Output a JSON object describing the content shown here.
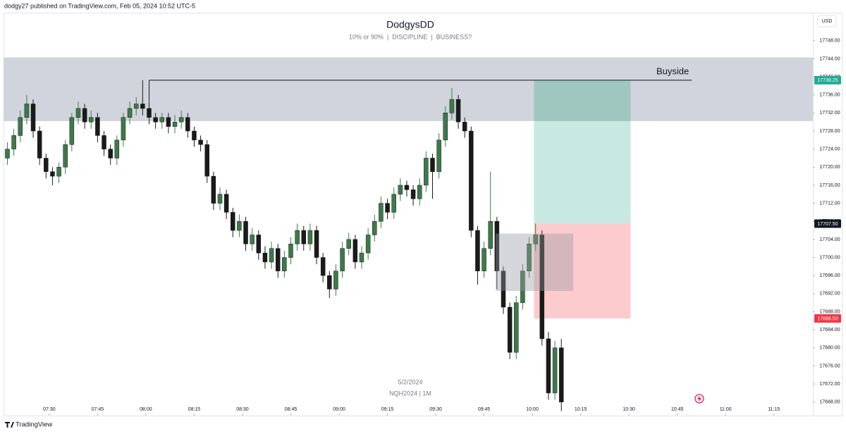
{
  "header": {
    "published": "dodgy27 published on TradingView.com, Feb 05, 2024 10:52 UTC-5"
  },
  "footer": {
    "brand": "TradingView"
  },
  "chart_data": {
    "type": "candlestick",
    "title": "DodgysDD",
    "subtitle": "10% or 90%  |  DISCIPLINE  |  BUSINESS?",
    "watermark": [
      "5/2/2024",
      "NQH2024 | 1M"
    ],
    "currency": "USD",
    "up_color": "#3d7a4a",
    "down_color": "#1a1a1a",
    "grid": false,
    "xlim": [
      435.8,
      687.1
    ],
    "ylim": [
      17665,
      17754.2
    ],
    "xticks": [
      {
        "value": 450,
        "label": "07:30"
      },
      {
        "value": 465,
        "label": "07:45"
      },
      {
        "value": 480,
        "label": "08:00"
      },
      {
        "value": 495,
        "label": "08:15"
      },
      {
        "value": 510,
        "label": "08:30"
      },
      {
        "value": 525,
        "label": "08:45"
      },
      {
        "value": 540,
        "label": "09:00"
      },
      {
        "value": 555,
        "label": "09:15"
      },
      {
        "value": 570,
        "label": "09:30"
      },
      {
        "value": 585,
        "label": "09:45"
      },
      {
        "value": 600,
        "label": "10:00"
      },
      {
        "value": 615,
        "label": "10:15"
      },
      {
        "value": 630,
        "label": "10:30"
      },
      {
        "value": 645,
        "label": "10:45"
      },
      {
        "value": 660,
        "label": "11:00"
      },
      {
        "value": 675,
        "label": "11:15"
      }
    ],
    "yticks": [
      {
        "value": 17748,
        "label": "17748.00"
      },
      {
        "value": 17744,
        "label": "17744.00"
      },
      {
        "value": 17740,
        "label": "17740.00"
      },
      {
        "value": 17736,
        "label": "17736.00"
      },
      {
        "value": 17732,
        "label": "17732.00"
      },
      {
        "value": 17728,
        "label": "17728.00"
      },
      {
        "value": 17724,
        "label": "17724.00"
      },
      {
        "value": 17720,
        "label": "17720.00"
      },
      {
        "value": 17716,
        "label": "17716.00"
      },
      {
        "value": 17712,
        "label": "17712.00"
      },
      {
        "value": 17708,
        "label": "17708.00"
      },
      {
        "value": 17704,
        "label": "17704.00"
      },
      {
        "value": 17700,
        "label": "17700.00"
      },
      {
        "value": 17696,
        "label": "17696.00"
      },
      {
        "value": 17692,
        "label": "17692.00"
      },
      {
        "value": 17688,
        "label": "17688.00"
      },
      {
        "value": 17684,
        "label": "17684.00"
      },
      {
        "value": 17680,
        "label": "17680.00"
      },
      {
        "value": 17676,
        "label": "17676.00"
      },
      {
        "value": 17672,
        "label": "17672.00"
      },
      {
        "value": 17668,
        "label": "17668.00"
      }
    ],
    "price_labels": [
      {
        "value": 17739.25,
        "label": "17739.25",
        "color": "#22ab94"
      },
      {
        "value": 17707.5,
        "label": "17707.50",
        "color": "#131722"
      },
      {
        "value": 17686.5,
        "label": "17686.50",
        "color": "#f23645"
      }
    ],
    "zone": {
      "y": [
        17730.2,
        17744.3
      ],
      "color": "#d1d4dc"
    },
    "buyside": {
      "label": "Buyside",
      "value": 17739.25,
      "x": [
        481,
        649.5
      ]
    },
    "position": {
      "x": [
        600.5,
        630.5
      ],
      "target": 17739.25,
      "entry": 17707.5,
      "stop": 17686.5,
      "target_color": "#c8e9e2",
      "stop_color": "#fccbcd"
    },
    "fvg": {
      "x": [
        588.6,
        612.7
      ],
      "y": [
        17692.6,
        17705.3
      ],
      "color": "#9598a1"
    },
    "x": [
      437,
      439,
      441,
      443,
      445,
      447,
      449,
      451,
      453,
      455,
      457,
      459,
      461,
      463,
      465,
      467,
      469,
      471,
      473,
      475,
      477,
      479,
      481,
      483,
      485,
      487,
      489,
      491,
      493,
      495,
      497,
      499,
      501,
      503,
      505,
      507,
      509,
      511,
      513,
      515,
      517,
      519,
      521,
      523,
      525,
      527,
      529,
      531,
      533,
      535,
      537,
      539,
      541,
      543,
      545,
      547,
      549,
      551,
      553,
      555,
      557,
      559,
      561,
      563,
      565,
      567,
      569,
      571,
      573,
      575,
      577,
      579,
      581,
      583,
      585,
      587,
      589,
      591,
      593,
      595,
      597,
      599,
      601,
      603,
      605,
      607,
      609
    ],
    "open": [
      17722,
      17724,
      17727,
      17731,
      17734,
      17728,
      17722,
      17719,
      17718,
      17720,
      17725,
      17731,
      17733,
      17730,
      17731,
      17727,
      17724,
      17722,
      17726,
      17731,
      17733,
      17734,
      17733,
      17731,
      17730,
      17731,
      17729,
      17730,
      17731,
      17728,
      17726,
      17725,
      17718,
      17712,
      17714,
      17710,
      17706,
      17708,
      17703,
      17705,
      17701,
      17699,
      17702,
      17697,
      17700,
      17703,
      17706,
      17703,
      17706,
      17700,
      17696,
      17693,
      17697,
      17702,
      17704,
      17699,
      17701,
      17705,
      17708,
      17712,
      17710,
      17714,
      17716,
      17715,
      17713,
      17716,
      17722,
      17719,
      17726,
      17732,
      17735,
      17730,
      17728,
      17706,
      17697,
      17702,
      17708,
      17697,
      17689,
      17679,
      17690,
      17697,
      17703,
      17705,
      17682,
      17670,
      17680
    ],
    "high": [
      17725.5,
      17728.5,
      17732.5,
      17736,
      17735,
      17729,
      17723,
      17720,
      17721,
      17726,
      17732,
      17734.5,
      17734,
      17732.5,
      17732,
      17728,
      17725,
      17727,
      17732,
      17734.5,
      17735.5,
      17739.25,
      17734.5,
      17732,
      17732,
      17732,
      17731.5,
      17732.5,
      17732,
      17729,
      17727,
      17726,
      17719,
      17715.5,
      17715,
      17711,
      17709.5,
      17709,
      17706.5,
      17706,
      17702.5,
      17703.5,
      17703,
      17701.5,
      17704.5,
      17707.5,
      17707,
      17707.5,
      17707,
      17701,
      17697,
      17698.5,
      17703.5,
      17705.5,
      17705,
      17702.5,
      17706.5,
      17709.5,
      17713.5,
      17713,
      17715.5,
      17717.5,
      17717,
      17716,
      17717.5,
      17723.5,
      17723,
      17727.5,
      17733.5,
      17737.5,
      17736,
      17731,
      17729,
      17707,
      17703.5,
      17719,
      17709,
      17698,
      17690,
      17691.5,
      17698.5,
      17704.5,
      17707.5,
      17706,
      17683.5,
      17681.5,
      17682
    ],
    "low": [
      17720.5,
      17722.5,
      17725.5,
      17729.5,
      17726.5,
      17720.5,
      17717.5,
      17716,
      17716.5,
      17718.5,
      17723.5,
      17729.5,
      17728.5,
      17728.5,
      17725.5,
      17722.5,
      17720.5,
      17720.5,
      17724.5,
      17729.5,
      17731.5,
      17731.5,
      17729.5,
      17728.5,
      17728.5,
      17727.5,
      17727.5,
      17728.5,
      17726.5,
      17724.5,
      17723.5,
      17716.5,
      17710.5,
      17710.5,
      17708.5,
      17704.5,
      17704.5,
      17701.5,
      17701.5,
      17699.5,
      17697.5,
      17697.5,
      17695.5,
      17695.5,
      17698.5,
      17701.5,
      17701.5,
      17701.5,
      17698.5,
      17694.5,
      17691,
      17691.5,
      17695.5,
      17700.5,
      17697.5,
      17697.5,
      17699.5,
      17703.5,
      17706.5,
      17708.5,
      17708.5,
      17712.5,
      17713.5,
      17711.5,
      17711.5,
      17714.5,
      17713,
      17717.5,
      17724.5,
      17730.5,
      17728.5,
      17726.5,
      17704.5,
      17694,
      17695.5,
      17700.5,
      17693,
      17687.5,
      17677.5,
      17677.5,
      17688.5,
      17695.5,
      17701.5,
      17680.5,
      17668.5,
      17668.5,
      17666
    ],
    "close": [
      17724,
      17727,
      17731,
      17734,
      17728,
      17722,
      17719,
      17718,
      17720,
      17725,
      17731,
      17733,
      17730,
      17731,
      17727,
      17724,
      17722,
      17726,
      17731,
      17733,
      17734,
      17733,
      17731,
      17730,
      17731,
      17729,
      17730,
      17731,
      17728,
      17726,
      17725,
      17718,
      17712,
      17714,
      17710,
      17706,
      17708,
      17703,
      17705,
      17701,
      17699,
      17702,
      17697,
      17700,
      17703,
      17706,
      17703,
      17706,
      17700,
      17696,
      17693,
      17697,
      17702,
      17704,
      17699,
      17701,
      17705,
      17708,
      17712,
      17710,
      17714,
      17716,
      17715,
      17713,
      17716,
      17722,
      17719,
      17726,
      17732,
      17735,
      17730,
      17728,
      17706,
      17697,
      17702,
      17708,
      17697,
      17689,
      17679,
      17690,
      17697,
      17703,
      17705,
      17682,
      17670,
      17680,
      17668
    ]
  }
}
